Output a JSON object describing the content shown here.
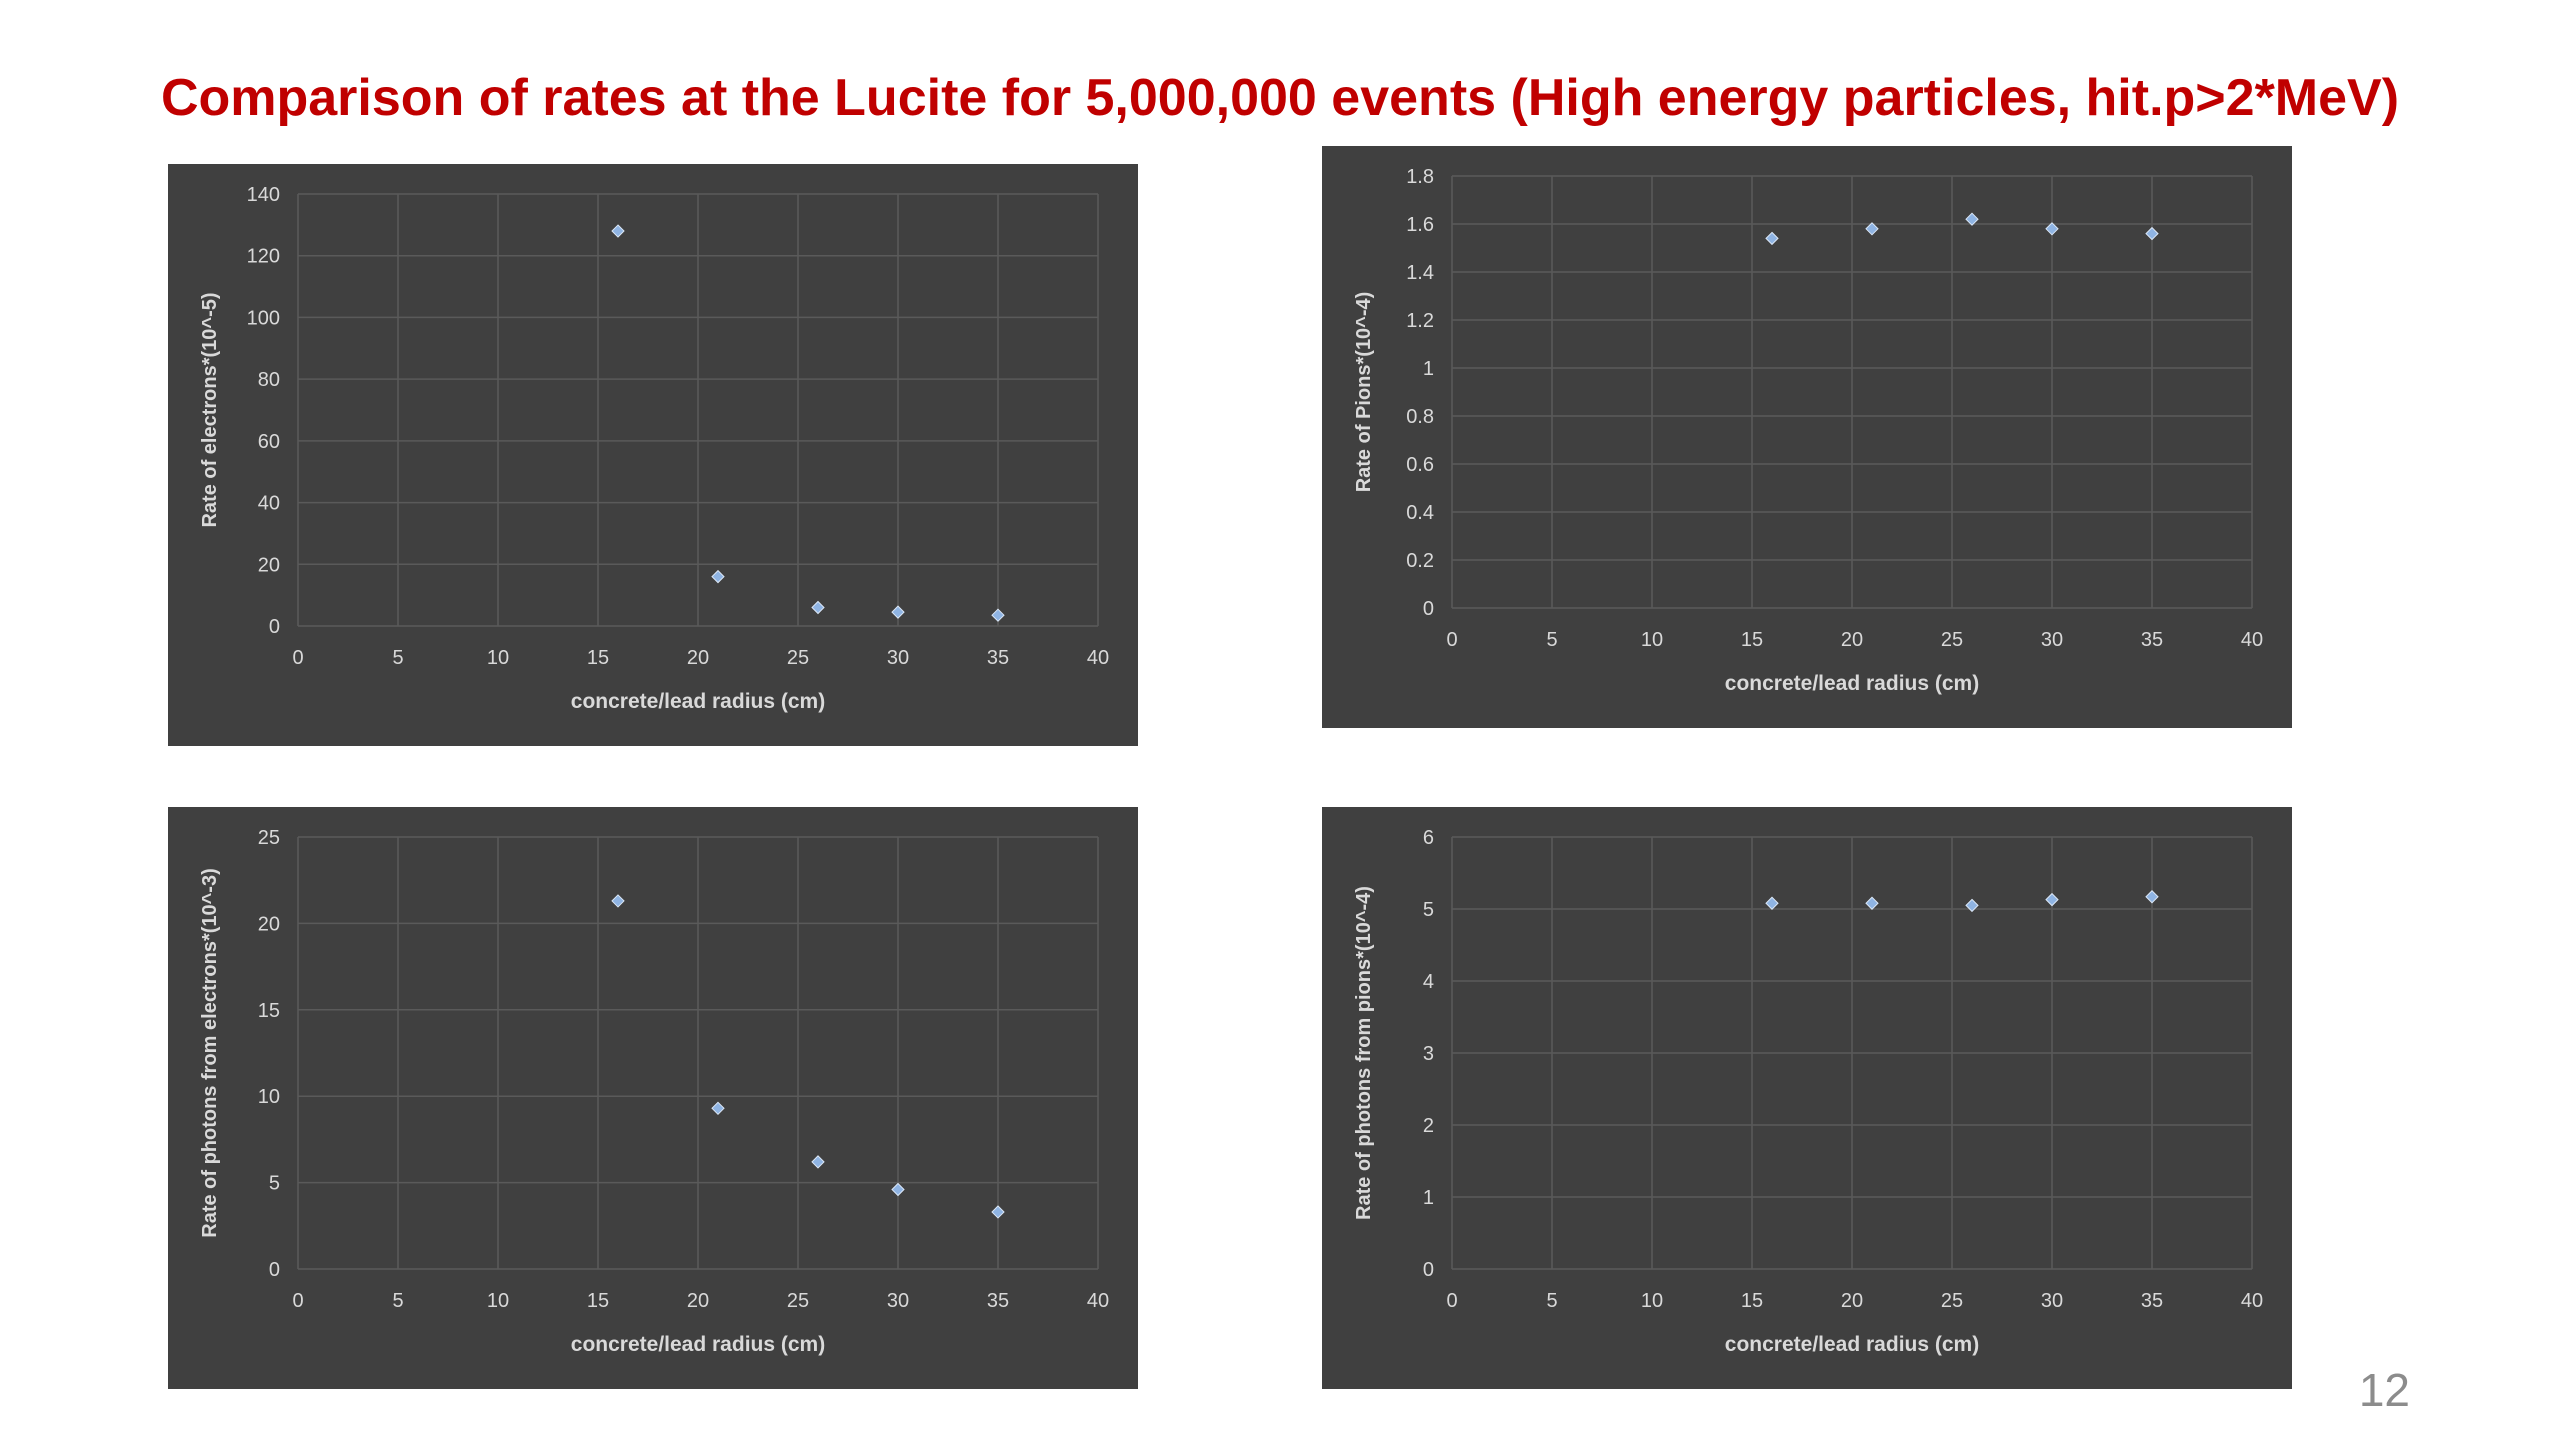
{
  "slide": {
    "title": "Comparison of rates at the Lucite for 5,000,000 events (High energy particles, hit.p>2*MeV)",
    "page_number": "12"
  },
  "colors": {
    "title": "#c00000",
    "panel_background": "#404040",
    "gridline": "#5a5a5a",
    "axis_text": "#d9d9d9",
    "marker": "#8fb4e3"
  },
  "chart_data": [
    {
      "type": "scatter",
      "title": "",
      "xlabel": "concrete/lead radius (cm)",
      "ylabel": "Rate of electrons*(10^-5)",
      "xlim": [
        0,
        40
      ],
      "ylim": [
        0,
        140
      ],
      "xticks": [
        "0",
        "5",
        "10",
        "15",
        "20",
        "25",
        "30",
        "35",
        "40"
      ],
      "yticks": [
        "0",
        "20",
        "40",
        "60",
        "80",
        "100",
        "120",
        "140"
      ],
      "grid": true,
      "series": [
        {
          "x": [
            16,
            21,
            26,
            30,
            35
          ],
          "y": [
            128,
            16,
            6,
            4.5,
            3.5
          ]
        }
      ]
    },
    {
      "type": "scatter",
      "title": "",
      "xlabel": "concrete/lead radius (cm)",
      "ylabel": "Rate of Pions*(10^-4)",
      "xlim": [
        0,
        40
      ],
      "ylim": [
        0,
        1.8
      ],
      "xticks": [
        "0",
        "5",
        "10",
        "15",
        "20",
        "25",
        "30",
        "35",
        "40"
      ],
      "yticks": [
        "0",
        "0.2",
        "0.4",
        "0.6",
        "0.8",
        "1",
        "1.2",
        "1.4",
        "1.6",
        "1.8"
      ],
      "grid": true,
      "series": [
        {
          "x": [
            16,
            21,
            26,
            30,
            35
          ],
          "y": [
            1.54,
            1.58,
            1.62,
            1.58,
            1.56
          ]
        }
      ]
    },
    {
      "type": "scatter",
      "title": "",
      "xlabel": "concrete/lead radius (cm)",
      "ylabel": "Rate of photons from electrons*(10^-3)",
      "xlim": [
        0,
        40
      ],
      "ylim": [
        0,
        25
      ],
      "xticks": [
        "0",
        "5",
        "10",
        "15",
        "20",
        "25",
        "30",
        "35",
        "40"
      ],
      "yticks": [
        "0",
        "5",
        "10",
        "15",
        "20",
        "25"
      ],
      "grid": true,
      "series": [
        {
          "x": [
            16,
            21,
            26,
            30,
            35
          ],
          "y": [
            21.3,
            9.3,
            6.2,
            4.6,
            3.3
          ]
        }
      ]
    },
    {
      "type": "scatter",
      "title": "",
      "xlabel": "concrete/lead radius (cm)",
      "ylabel": "Rate of photons from pions*(10^-4)",
      "xlim": [
        0,
        40
      ],
      "ylim": [
        0,
        6
      ],
      "xticks": [
        "0",
        "5",
        "10",
        "15",
        "20",
        "25",
        "30",
        "35",
        "40"
      ],
      "yticks": [
        "0",
        "1",
        "2",
        "3",
        "4",
        "5",
        "6"
      ],
      "grid": true,
      "series": [
        {
          "x": [
            16,
            21,
            26,
            30,
            35
          ],
          "y": [
            5.08,
            5.08,
            5.05,
            5.13,
            5.17
          ]
        }
      ]
    }
  ]
}
